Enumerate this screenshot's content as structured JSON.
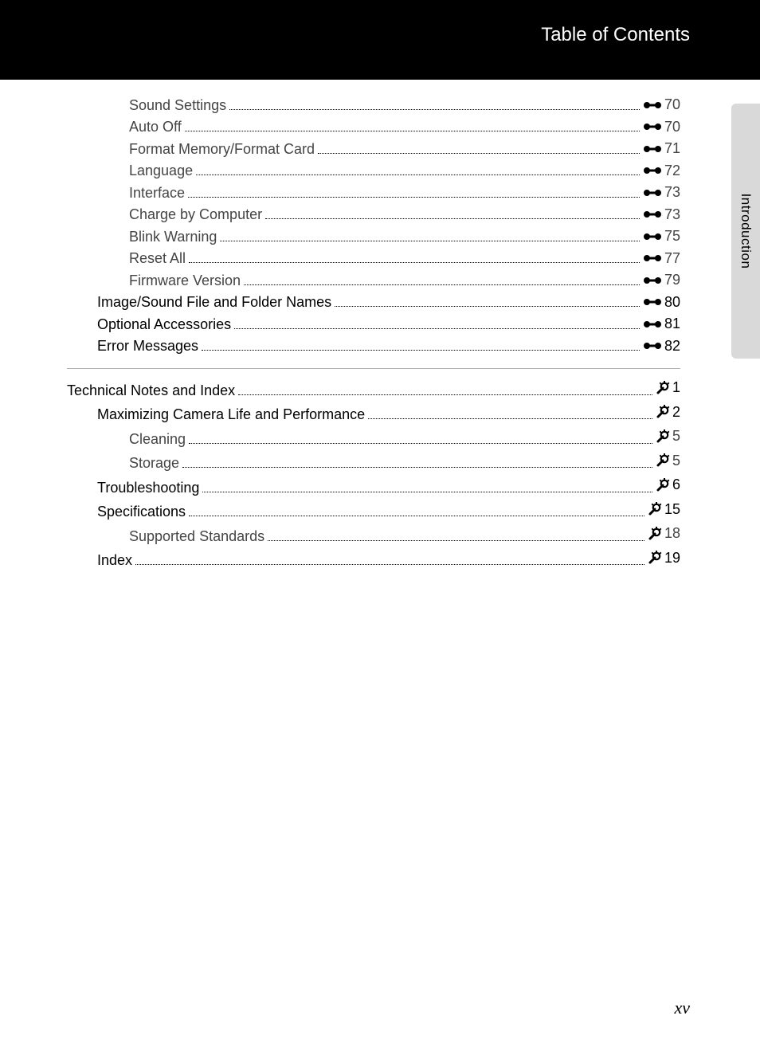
{
  "header": {
    "title": "Table of Contents"
  },
  "side_tab": {
    "label": "Introduction"
  },
  "page_number": "xv",
  "section1": {
    "rows": [
      {
        "label": "Sound Settings",
        "page": "70",
        "level": 3,
        "icon": "ref"
      },
      {
        "label": "Auto Off",
        "page": "70",
        "level": 3,
        "icon": "ref"
      },
      {
        "label": "Format Memory/Format Card",
        "page": "71",
        "level": 3,
        "icon": "ref"
      },
      {
        "label": "Language",
        "page": "72",
        "level": 3,
        "icon": "ref"
      },
      {
        "label": "Interface",
        "page": "73",
        "level": 3,
        "icon": "ref"
      },
      {
        "label": "Charge by Computer",
        "page": "73",
        "level": 3,
        "icon": "ref"
      },
      {
        "label": "Blink Warning",
        "page": "75",
        "level": 3,
        "icon": "ref"
      },
      {
        "label": "Reset All",
        "page": "77",
        "level": 3,
        "icon": "ref"
      },
      {
        "label": "Firmware Version",
        "page": "79",
        "level": 3,
        "icon": "ref"
      },
      {
        "label": "Image/Sound File and Folder Names",
        "page": "80",
        "level": 2,
        "icon": "ref"
      },
      {
        "label": "Optional Accessories",
        "page": "81",
        "level": 2,
        "icon": "ref"
      },
      {
        "label": "Error Messages",
        "page": "82",
        "level": 2,
        "icon": "ref"
      }
    ]
  },
  "section2": {
    "rows": [
      {
        "label": "Technical Notes and Index",
        "page": "1",
        "level": 1,
        "icon": "tech"
      },
      {
        "label": "Maximizing Camera Life and Performance",
        "page": "2",
        "level": 2,
        "icon": "tech"
      },
      {
        "label": "Cleaning",
        "page": "5",
        "level": 3,
        "icon": "tech"
      },
      {
        "label": "Storage",
        "page": "5",
        "level": 3,
        "icon": "tech"
      },
      {
        "label": "Troubleshooting",
        "page": "6",
        "level": 2,
        "icon": "tech"
      },
      {
        "label": "Specifications",
        "page": "15",
        "level": 2,
        "icon": "tech"
      },
      {
        "label": "Supported Standards",
        "page": "18",
        "level": 3,
        "icon": "tech"
      },
      {
        "label": "Index",
        "page": "19",
        "level": 2,
        "icon": "tech"
      }
    ]
  }
}
